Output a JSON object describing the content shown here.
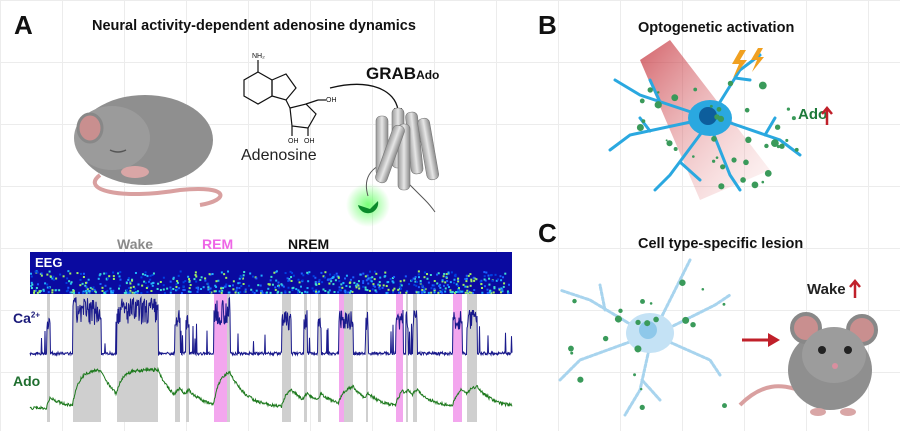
{
  "panel_a": {
    "letter": "A",
    "title": "Neural activity-dependent adenosine dynamics",
    "molecule_label": "Adenosine",
    "molecule_atoms": {
      "nh2": "NH₂",
      "n": "N",
      "o": "O",
      "oh": "OH"
    },
    "sensor_name": "GRAB",
    "sensor_subscript": "Ado",
    "legend": {
      "wake": "Wake",
      "rem": "REM",
      "nrem": "NREM"
    },
    "eeg_label": "EEG",
    "ca_label": "Ca",
    "ca_superscript": "2+",
    "ado_label": "Ado",
    "colors": {
      "wake": "#cfcfcf",
      "rem": "#f3a6ee",
      "ca_trace": "#1a1a8c",
      "ado_trace": "#1e7a1e",
      "eeg_bg": "#0a0aa0"
    }
  },
  "panel_b": {
    "letter": "B",
    "title": "Optogenetic activation",
    "ado_label": "Ado",
    "arrow": "up"
  },
  "panel_c": {
    "letter": "C",
    "title": "Cell type-specific lesion",
    "wake_label": "Wake",
    "arrow": "up"
  }
}
